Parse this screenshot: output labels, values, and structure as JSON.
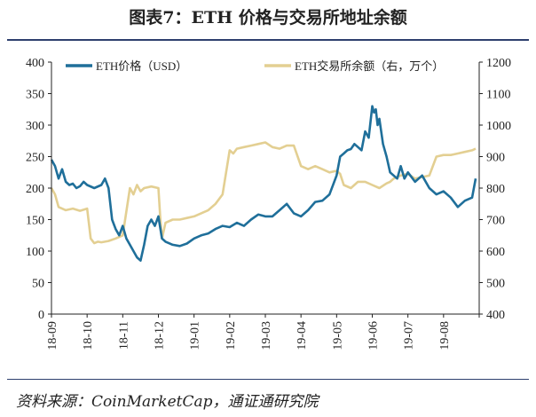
{
  "figure": {
    "title": "图表7：ETH 价格与交易所地址余额",
    "source": "资料来源：CoinMarketCap，通证通研究院"
  },
  "chart_data": {
    "type": "line",
    "xlabel": "",
    "ylabel": "",
    "x_tick_labels": [
      "18-09",
      "18-10",
      "18-11",
      "18-12",
      "19-01",
      "19-02",
      "19-03",
      "19-04",
      "19-05",
      "19-06",
      "19-07",
      "19-08"
    ],
    "left_axis": {
      "ylim": [
        0,
        400
      ],
      "ticks": [
        0,
        50,
        100,
        150,
        200,
        250,
        300,
        350,
        400
      ]
    },
    "right_axis": {
      "ylim": [
        400,
        1200
      ],
      "ticks": [
        400,
        500,
        600,
        700,
        800,
        900,
        1000,
        1100,
        1200
      ]
    },
    "legend_placement": "top",
    "grid": false,
    "series": [
      {
        "name": "ETH价格（USD）",
        "axis": "left",
        "color": "#1f6f9a",
        "x_month_index": [
          0,
          0.1,
          0.2,
          0.3,
          0.4,
          0.5,
          0.6,
          0.7,
          0.8,
          0.9,
          1,
          1.2,
          1.4,
          1.5,
          1.6,
          1.7,
          1.8,
          1.9,
          2,
          2.1,
          2.2,
          2.3,
          2.4,
          2.5,
          2.6,
          2.7,
          2.8,
          2.9,
          3,
          3.1,
          3.2,
          3.4,
          3.6,
          3.8,
          4,
          4.2,
          4.4,
          4.6,
          4.8,
          5,
          5.2,
          5.4,
          5.6,
          5.8,
          6,
          6.2,
          6.4,
          6.6,
          6.8,
          7,
          7.2,
          7.4,
          7.6,
          7.8,
          8,
          8.1,
          8.2,
          8.3,
          8.4,
          8.5,
          8.6,
          8.7,
          8.8,
          8.9,
          9,
          9.05,
          9.1,
          9.15,
          9.2,
          9.3,
          9.4,
          9.5,
          9.6,
          9.7,
          9.8,
          9.9,
          10,
          10.2,
          10.4,
          10.6,
          10.8,
          11,
          11.2,
          11.4,
          11.6,
          11.8,
          11.9
        ],
        "values": [
          245,
          235,
          215,
          230,
          210,
          205,
          207,
          200,
          203,
          210,
          205,
          200,
          205,
          215,
          200,
          150,
          135,
          125,
          140,
          120,
          110,
          100,
          90,
          85,
          110,
          140,
          150,
          140,
          155,
          120,
          115,
          110,
          108,
          112,
          120,
          125,
          128,
          135,
          140,
          138,
          145,
          140,
          150,
          158,
          155,
          155,
          165,
          175,
          160,
          155,
          165,
          178,
          180,
          190,
          220,
          250,
          255,
          260,
          262,
          270,
          265,
          260,
          290,
          280,
          330,
          320,
          325,
          300,
          310,
          270,
          250,
          225,
          220,
          215,
          235,
          215,
          225,
          210,
          220,
          200,
          190,
          195,
          185,
          170,
          180,
          185,
          215
        ]
      },
      {
        "name": "ETH交易所余额（右，万个）",
        "axis": "right",
        "color": "#e3cf92",
        "x_month_index": [
          0,
          0.1,
          0.2,
          0.4,
          0.6,
          0.8,
          1,
          1.1,
          1.2,
          1.3,
          1.4,
          1.6,
          1.8,
          2,
          2.2,
          2.3,
          2.4,
          2.5,
          2.6,
          2.8,
          3,
          3.05,
          3.1,
          3.2,
          3.4,
          3.6,
          3.8,
          4,
          4.2,
          4.4,
          4.6,
          4.8,
          5,
          5.1,
          5.2,
          5.4,
          5.6,
          5.8,
          6,
          6.2,
          6.4,
          6.6,
          6.8,
          7,
          7.2,
          7.4,
          7.6,
          7.8,
          8,
          8.1,
          8.2,
          8.4,
          8.6,
          8.8,
          9,
          9.2,
          9.4,
          9.5,
          9.6,
          9.8,
          10,
          10.2,
          10.4,
          10.6,
          10.8,
          11,
          11.2,
          11.4,
          11.6,
          11.8,
          11.9
        ],
        "values": [
          800,
          780,
          740,
          730,
          735,
          728,
          735,
          640,
          625,
          630,
          628,
          632,
          640,
          650,
          800,
          780,
          810,
          790,
          800,
          805,
          800,
          710,
          640,
          690,
          700,
          700,
          705,
          710,
          720,
          730,
          750,
          780,
          920,
          910,
          925,
          930,
          935,
          940,
          945,
          930,
          925,
          935,
          935,
          870,
          860,
          870,
          860,
          850,
          855,
          845,
          810,
          800,
          820,
          820,
          810,
          800,
          815,
          820,
          830,
          840,
          845,
          830,
          835,
          840,
          900,
          905,
          905,
          910,
          915,
          920,
          925
        ]
      }
    ]
  },
  "colors": {
    "axis": "#222222",
    "rule": "#2e3f6e"
  }
}
